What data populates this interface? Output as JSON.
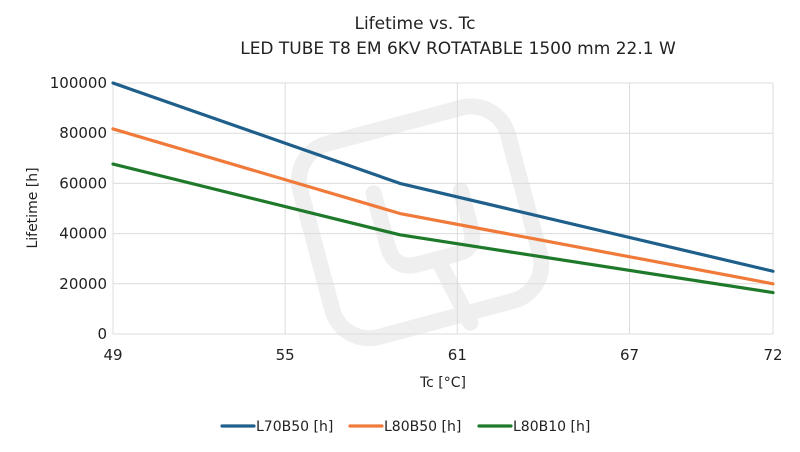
{
  "chart_data": {
    "type": "line",
    "title": "Lifetime vs. Tc",
    "subtitle": "LED TUBE T8 EM 6KV ROTATABLE 1500 mm 22.1 W",
    "xlabel": "Tc [°C]",
    "ylabel": "Lifetime [h]",
    "xlim": [
      49,
      72
    ],
    "ylim": [
      0,
      100000
    ],
    "x_ticks": [
      49,
      55,
      61,
      67,
      72
    ],
    "y_ticks": [
      0,
      20000,
      40000,
      60000,
      80000,
      100000
    ],
    "grid": true,
    "legend_position": "bottom-center",
    "x": [
      49,
      59,
      72
    ],
    "series": [
      {
        "name": "L70B50 [h]",
        "color": "#1f5f8b",
        "values": [
          100000,
          60000,
          25000
        ]
      },
      {
        "name": "L80B50 [h]",
        "color": "#f07a3a",
        "values": [
          81700,
          48000,
          20000
        ]
      },
      {
        "name": "L80B10 [h]",
        "color": "#1e7a2a",
        "values": [
          67700,
          39500,
          16500
        ]
      }
    ]
  }
}
